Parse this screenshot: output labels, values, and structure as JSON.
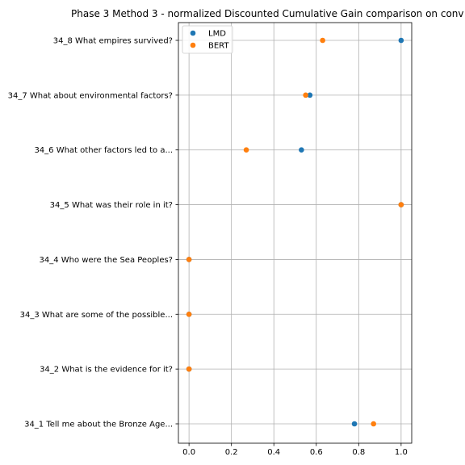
{
  "chart_data": {
    "type": "scatter",
    "title": "Phase 3 Method 3 - normalized Discounted Cumulative Gain comparison on conv",
    "xlabel": "",
    "ylabel": "",
    "xlim": [
      -0.05,
      1.05
    ],
    "xticks": [
      0.0,
      0.2,
      0.4,
      0.6,
      0.8,
      1.0
    ],
    "xtick_labels": [
      "0.0",
      "0.2",
      "0.4",
      "0.6",
      "0.8",
      "1.0"
    ],
    "categories": [
      "34_1 Tell me about the Bronze Age...",
      "34_2 What is the evidence for it?",
      "34_3 What are some of the possible...",
      "34_4 Who were the Sea Peoples?",
      "34_5 What was their role in it?",
      "34_6 What other factors led to a...",
      "34_7 What about environmental factors?",
      "34_8 What empires survived?"
    ],
    "series": [
      {
        "name": "LMD",
        "color": "#1f77b4",
        "values": [
          0.78,
          0.0,
          0.0,
          0.0,
          1.0,
          0.53,
          0.57,
          1.0
        ]
      },
      {
        "name": "BERT",
        "color": "#ff7f0e",
        "values": [
          0.87,
          0.0,
          0.0,
          0.0,
          1.0,
          0.27,
          0.55,
          0.63
        ]
      }
    ],
    "grid": true,
    "legend_position": "top-left"
  }
}
